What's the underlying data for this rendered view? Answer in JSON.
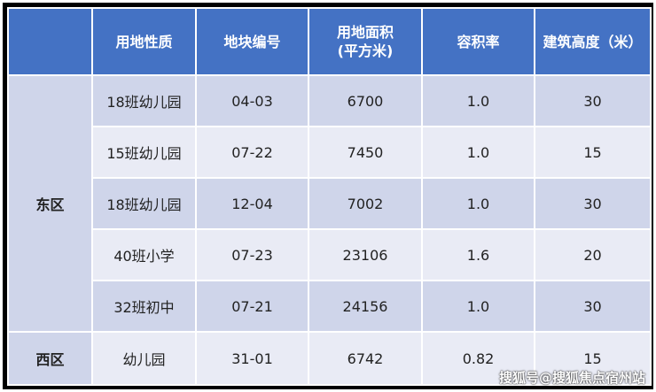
{
  "colors": {
    "header": "#4472C4",
    "row_dark": "#CFD5EA",
    "row_light": "#E9EBF5"
  },
  "headers": [
    "",
    "用地性质",
    "地块编号",
    "用地面积\n(平方米)",
    "容积率",
    "建筑高度（米）"
  ],
  "header_area_line1": "用地面积",
  "header_area_line2": "(平方米)",
  "groups": [
    {
      "zone": "东区",
      "rows": [
        [
          "18班幼儿园",
          "04-03",
          "6700",
          "1.0",
          "30"
        ],
        [
          "15班幼儿园",
          "07-22",
          "7450",
          "1.0",
          "15"
        ],
        [
          "18班幼儿园",
          "12-04",
          "7002",
          "1.0",
          "30"
        ],
        [
          "40班小学",
          "07-23",
          "23106",
          "1.6",
          "20"
        ],
        [
          "32班初中",
          "07-21",
          "24156",
          "1.0",
          "30"
        ]
      ]
    },
    {
      "zone": "西区",
      "rows": [
        [
          "幼儿园",
          "31-01",
          "6742",
          "0.82",
          "15"
        ]
      ]
    }
  ],
  "watermark": "搜狐号@搜狐焦点宿州站"
}
